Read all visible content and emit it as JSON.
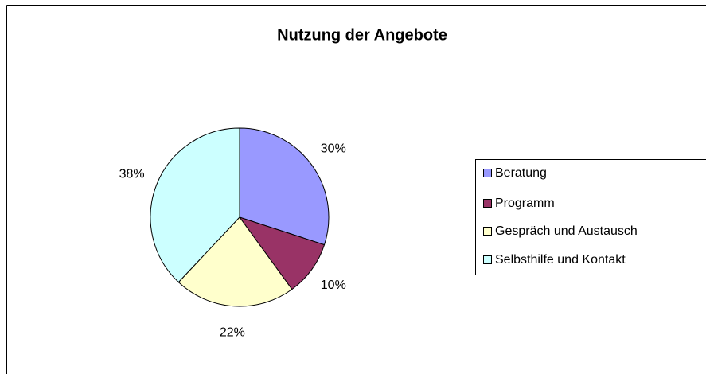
{
  "chart_data": {
    "type": "pie",
    "title": "Nutzung der Angebote",
    "categories": [
      "Beratung",
      "Programm",
      "Gespräch und Austausch",
      "Selbsthilfe und Kontakt"
    ],
    "values": [
      30,
      10,
      22,
      38
    ],
    "value_labels": [
      "30%",
      "10%",
      "22%",
      "38%"
    ],
    "colors": [
      "#9999ff",
      "#993366",
      "#ffffcc",
      "#ccffff"
    ],
    "legend": "right"
  }
}
